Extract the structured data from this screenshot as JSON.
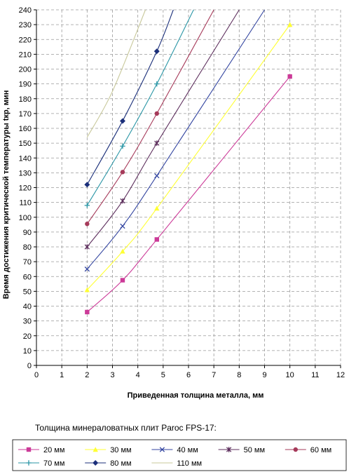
{
  "chart_data": {
    "type": "line",
    "title": "",
    "xlabel": "Приведенная толщина металла, мм",
    "ylabel": "Время достижения критической температуры tкр, мин",
    "xlim": [
      0,
      12
    ],
    "ylim": [
      0,
      240
    ],
    "x_ticks": [
      0,
      1,
      2,
      3,
      4,
      5,
      6,
      7,
      8,
      9,
      10,
      11,
      12
    ],
    "y_ticks": [
      0,
      10,
      20,
      30,
      40,
      50,
      60,
      70,
      80,
      90,
      100,
      110,
      120,
      130,
      140,
      150,
      160,
      170,
      180,
      190,
      200,
      210,
      220,
      230,
      240
    ],
    "grid": true,
    "legend_title": "Толщина минераловатных плит Paroc FPS-17:",
    "legend_placement": "bottom",
    "series": [
      {
        "name": "20 мм",
        "color": "#cc3a98",
        "marker": "square",
        "points": [
          [
            2.0,
            36
          ],
          [
            3.4,
            57.5
          ],
          [
            4.75,
            85
          ],
          [
            10.0,
            195
          ]
        ]
      },
      {
        "name": "30 мм",
        "color": "#ffff33",
        "marker": "triangle",
        "points": [
          [
            2.0,
            51
          ],
          [
            3.4,
            77
          ],
          [
            4.75,
            106
          ],
          [
            10.0,
            230
          ]
        ]
      },
      {
        "name": "40 мм",
        "color": "#3345a0",
        "marker": "x",
        "points": [
          [
            2.0,
            65
          ],
          [
            3.4,
            94
          ],
          [
            4.75,
            128
          ],
          [
            9.0,
            240
          ]
        ]
      },
      {
        "name": "50 мм",
        "color": "#5c2d5c",
        "marker": "asterisk",
        "points": [
          [
            2.0,
            80
          ],
          [
            3.4,
            111
          ],
          [
            4.75,
            150
          ],
          [
            8.0,
            240
          ]
        ]
      },
      {
        "name": "60 мм",
        "color": "#a63a5a",
        "marker": "circle",
        "points": [
          [
            2.0,
            95.5
          ],
          [
            3.4,
            130.5
          ],
          [
            4.75,
            170
          ],
          [
            7.0,
            240
          ]
        ]
      },
      {
        "name": "70 мм",
        "color": "#2a96a6",
        "marker": "plus",
        "points": [
          [
            2.0,
            108
          ],
          [
            3.4,
            148
          ],
          [
            4.75,
            190
          ],
          [
            6.2,
            240
          ]
        ]
      },
      {
        "name": "80 мм",
        "color": "#1b2f7a",
        "marker": "diamond",
        "points": [
          [
            2.0,
            122
          ],
          [
            3.4,
            165
          ],
          [
            4.75,
            212
          ],
          [
            5.4,
            240
          ]
        ]
      },
      {
        "name": "110 мм",
        "color": "#c8c89a",
        "marker": "none",
        "points": [
          [
            2.0,
            154
          ],
          [
            3.0,
            185
          ],
          [
            4.3,
            240
          ]
        ]
      }
    ]
  }
}
